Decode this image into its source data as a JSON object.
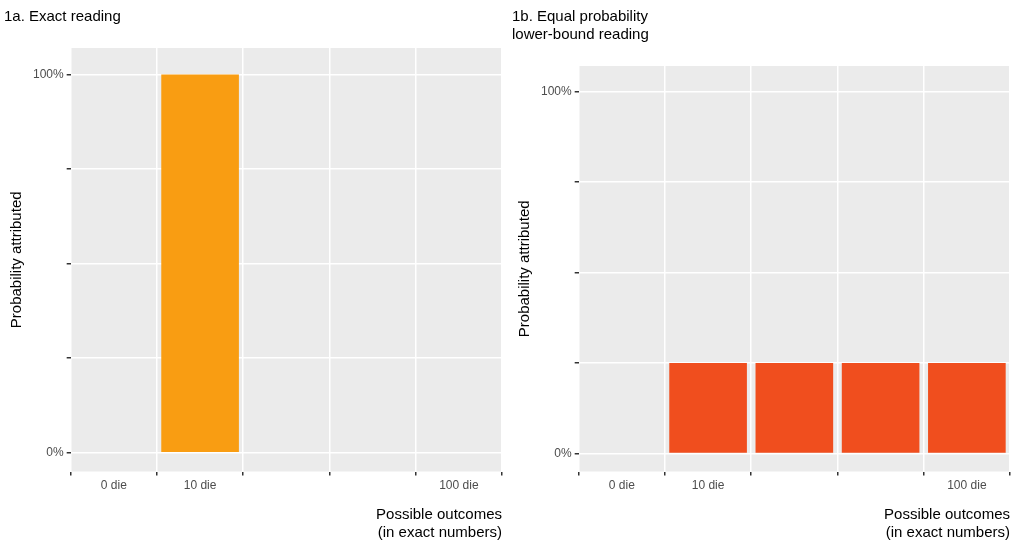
{
  "chart_data": [
    {
      "type": "bar",
      "title": "1a. Exact reading",
      "xlabel": "Possible outcomes\n(in exact numbers)",
      "ylabel": "Probability attributed",
      "categories": [
        "0 die",
        "10 die",
        null,
        null,
        "100 die"
      ],
      "values": [
        0,
        100,
        0,
        0,
        0
      ],
      "color": "#f99d12",
      "ylim": [
        -5,
        107
      ],
      "yticks": [
        {
          "value": 0,
          "label": "0%"
        },
        {
          "value": 25,
          "label": null
        },
        {
          "value": 50,
          "label": null
        },
        {
          "value": 75,
          "label": null
        },
        {
          "value": 100,
          "label": "100%"
        }
      ],
      "grid": true
    },
    {
      "type": "bar",
      "title": "1b. Equal probability\nlower-bound reading",
      "xlabel": "Possible outcomes\n(in exact numbers)",
      "ylabel": "Probability attributed",
      "categories": [
        "0 die",
        "10 die",
        null,
        null,
        "100 die"
      ],
      "values": [
        0,
        25,
        25,
        25,
        25
      ],
      "color": "#f04e1e",
      "ylim": [
        -5,
        107
      ],
      "yticks": [
        {
          "value": 0,
          "label": "0%"
        },
        {
          "value": 25,
          "label": null
        },
        {
          "value": 50,
          "label": null
        },
        {
          "value": 75,
          "label": null
        },
        {
          "value": 100,
          "label": "100%"
        }
      ],
      "grid": true
    }
  ]
}
